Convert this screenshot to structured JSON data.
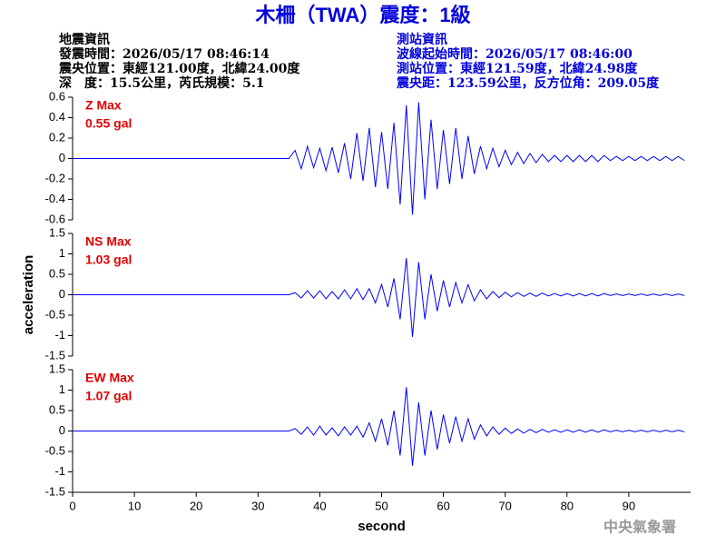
{
  "title": "木柵（TWA）震度：1級",
  "earthquake_info": [
    "地震資訊",
    "發震時間：2026/05/17 08:46:14",
    "震央位置：東經121.00度，北緯24.00度",
    "深　度：15.5公里，芮氏規模：5.1"
  ],
  "station_info": [
    "測站資訊",
    "波線起始時間：2026/05/17 08:46:00",
    "測站位置：東經121.59度，北緯24.98度",
    "震央距：123.59公里，反方位角：209.05度"
  ],
  "footer": "中央氣象署",
  "chart_data": [
    {
      "type": "line",
      "annotations": [
        "Z Max",
        "0.55 gal"
      ],
      "color": "#0000ff",
      "xlim": [
        0,
        100
      ],
      "ylim": [
        -0.6,
        0.6
      ],
      "yticks": [
        -0.6,
        -0.4,
        -0.2,
        0,
        0.2,
        0.4,
        0.6
      ],
      "x": [
        0,
        1,
        2,
        3,
        4,
        5,
        6,
        7,
        8,
        9,
        10,
        11,
        12,
        13,
        14,
        15,
        16,
        17,
        18,
        19,
        20,
        21,
        22,
        23,
        24,
        25,
        26,
        27,
        28,
        29,
        30,
        31,
        32,
        33,
        34,
        35,
        36,
        37,
        38,
        39,
        40,
        41,
        42,
        43,
        44,
        45,
        46,
        47,
        48,
        49,
        50,
        51,
        52,
        53,
        54,
        55,
        56,
        57,
        58,
        59,
        60,
        61,
        62,
        63,
        64,
        65,
        66,
        67,
        68,
        69,
        70,
        71,
        72,
        73,
        74,
        75,
        76,
        77,
        78,
        79,
        80,
        81,
        82,
        83,
        84,
        85,
        86,
        87,
        88,
        89,
        90,
        91,
        92,
        93,
        94,
        95,
        96,
        97,
        98,
        99
      ],
      "values": [
        0,
        0,
        0,
        0,
        0,
        0,
        0,
        0,
        0,
        0,
        0,
        0,
        0,
        0,
        0,
        0,
        0,
        0,
        0,
        0,
        0,
        0,
        0,
        0,
        0,
        0,
        0,
        0,
        0,
        0,
        0,
        0,
        0,
        0,
        0,
        0,
        0.08,
        -0.1,
        0.12,
        -0.09,
        0.1,
        -0.12,
        0.11,
        -0.14,
        0.15,
        -0.2,
        0.25,
        -0.22,
        0.3,
        -0.28,
        0.26,
        -0.3,
        0.35,
        -0.45,
        0.52,
        -0.55,
        0.55,
        -0.4,
        0.38,
        -0.3,
        0.28,
        -0.25,
        0.3,
        -0.2,
        0.22,
        -0.15,
        0.12,
        -0.1,
        0.1,
        -0.08,
        0.08,
        -0.06,
        0.06,
        -0.05,
        0.05,
        -0.04,
        0.04,
        -0.03,
        0.03,
        -0.03,
        0.03,
        -0.03,
        0.03,
        -0.03,
        0.03,
        -0.03,
        0.03,
        -0.02,
        0.02,
        -0.02,
        0.02,
        -0.02,
        0.02,
        -0.02,
        0.02,
        -0.02,
        0.02,
        -0.02,
        0.02,
        -0.02
      ]
    },
    {
      "type": "line",
      "annotations": [
        "NS Max",
        "1.03 gal"
      ],
      "color": "#0000ff",
      "xlim": [
        0,
        100
      ],
      "ylabel": "acceleration",
      "ylim": [
        -1.5,
        1.5
      ],
      "yticks": [
        -1.5,
        -1,
        -0.5,
        0,
        0.5,
        1,
        1.5
      ],
      "x": [
        0,
        1,
        2,
        3,
        4,
        5,
        6,
        7,
        8,
        9,
        10,
        11,
        12,
        13,
        14,
        15,
        16,
        17,
        18,
        19,
        20,
        21,
        22,
        23,
        24,
        25,
        26,
        27,
        28,
        29,
        30,
        31,
        32,
        33,
        34,
        35,
        36,
        37,
        38,
        39,
        40,
        41,
        42,
        43,
        44,
        45,
        46,
        47,
        48,
        49,
        50,
        51,
        52,
        53,
        54,
        55,
        56,
        57,
        58,
        59,
        60,
        61,
        62,
        63,
        64,
        65,
        66,
        67,
        68,
        69,
        70,
        71,
        72,
        73,
        74,
        75,
        76,
        77,
        78,
        79,
        80,
        81,
        82,
        83,
        84,
        85,
        86,
        87,
        88,
        89,
        90,
        91,
        92,
        93,
        94,
        95,
        96,
        97,
        98,
        99
      ],
      "values": [
        0,
        0,
        0,
        0,
        0,
        0,
        0,
        0,
        0,
        0,
        0,
        0,
        0,
        0,
        0,
        0,
        0,
        0,
        0,
        0,
        0,
        0,
        0,
        0,
        0,
        0,
        0,
        0,
        0,
        0,
        0,
        0,
        0,
        0,
        0,
        0,
        0.05,
        -0.08,
        0.1,
        -0.08,
        0.1,
        -0.1,
        0.08,
        -0.1,
        0.12,
        -0.1,
        0.15,
        -0.12,
        0.15,
        -0.2,
        0.25,
        -0.3,
        0.4,
        -0.6,
        0.9,
        -1.03,
        0.8,
        -0.6,
        0.5,
        -0.4,
        0.35,
        -0.3,
        0.3,
        -0.2,
        0.25,
        -0.15,
        0.12,
        -0.1,
        0.08,
        -0.07,
        0.06,
        -0.05,
        0.05,
        -0.04,
        0.04,
        -0.04,
        0.04,
        -0.03,
        0.03,
        -0.03,
        0.03,
        -0.03,
        0.03,
        -0.03,
        0.03,
        -0.03,
        0.03,
        -0.02,
        0.02,
        -0.02,
        0.02,
        -0.02,
        0.02,
        -0.02,
        0.02,
        -0.02,
        0.02,
        -0.02,
        0.02,
        -0.02
      ]
    },
    {
      "type": "line",
      "annotations": [
        "EW Max",
        "1.07 gal"
      ],
      "color": "#0000ff",
      "xlim": [
        0,
        100
      ],
      "xlabel": "second",
      "xticks": [
        0,
        10,
        20,
        30,
        40,
        50,
        60,
        70,
        80,
        90
      ],
      "ylim": [
        -1.5,
        1.5
      ],
      "yticks": [
        -1.5,
        -1,
        -0.5,
        0,
        0.5,
        1,
        1.5
      ],
      "x": [
        0,
        1,
        2,
        3,
        4,
        5,
        6,
        7,
        8,
        9,
        10,
        11,
        12,
        13,
        14,
        15,
        16,
        17,
        18,
        19,
        20,
        21,
        22,
        23,
        24,
        25,
        26,
        27,
        28,
        29,
        30,
        31,
        32,
        33,
        34,
        35,
        36,
        37,
        38,
        39,
        40,
        41,
        42,
        43,
        44,
        45,
        46,
        47,
        48,
        49,
        50,
        51,
        52,
        53,
        54,
        55,
        56,
        57,
        58,
        59,
        60,
        61,
        62,
        63,
        64,
        65,
        66,
        67,
        68,
        69,
        70,
        71,
        72,
        73,
        74,
        75,
        76,
        77,
        78,
        79,
        80,
        81,
        82,
        83,
        84,
        85,
        86,
        87,
        88,
        89,
        90,
        91,
        92,
        93,
        94,
        95,
        96,
        97,
        98,
        99
      ],
      "values": [
        0,
        0,
        0,
        0,
        0,
        0,
        0,
        0,
        0,
        0,
        0,
        0,
        0,
        0,
        0,
        0,
        0,
        0,
        0,
        0,
        0,
        0,
        0,
        0,
        0,
        0,
        0,
        0,
        0,
        0,
        0,
        0,
        0,
        0,
        0,
        0,
        0.06,
        -0.08,
        0.1,
        -0.1,
        0.12,
        -0.1,
        0.08,
        -0.12,
        0.1,
        -0.1,
        0.12,
        -0.15,
        0.2,
        -0.25,
        0.3,
        -0.35,
        0.5,
        -0.6,
        1.07,
        -0.85,
        0.7,
        -0.6,
        0.5,
        -0.45,
        0.4,
        -0.3,
        0.35,
        -0.25,
        0.3,
        -0.2,
        0.15,
        -0.12,
        0.1,
        -0.08,
        0.07,
        -0.06,
        0.05,
        -0.05,
        0.04,
        -0.04,
        0.04,
        -0.03,
        0.03,
        -0.03,
        0.03,
        -0.03,
        0.03,
        -0.03,
        0.03,
        -0.03,
        0.03,
        -0.02,
        0.02,
        -0.02,
        0.02,
        -0.02,
        0.02,
        -0.02,
        0.02,
        -0.02,
        0.02,
        -0.02,
        0.02,
        -0.02
      ]
    }
  ]
}
